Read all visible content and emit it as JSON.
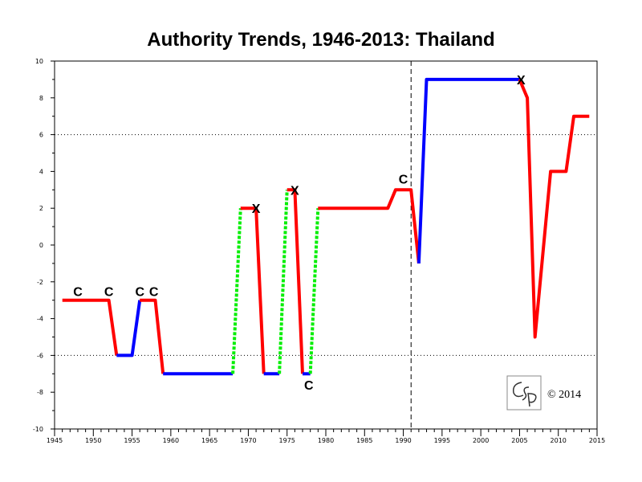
{
  "chart_data": {
    "type": "line",
    "title": "Authority Trends, 1946-2013: Thailand",
    "xlabel": "",
    "ylabel": "",
    "xlim": [
      1945,
      2015
    ],
    "ylim": [
      -10,
      10
    ],
    "x_ticks": [
      1945,
      1950,
      1955,
      1960,
      1965,
      1970,
      1975,
      1980,
      1985,
      1990,
      1995,
      2000,
      2005,
      2010,
      2015
    ],
    "y_ticks": [
      -10,
      -8,
      -6,
      -4,
      -2,
      0,
      2,
      4,
      6,
      8,
      10
    ],
    "reference_lines": {
      "horizontal_dotted": [
        6,
        -6
      ],
      "vertical_dashed": [
        1991
      ]
    },
    "series_colors": {
      "change": "#ff0000",
      "stable": "#0000ff",
      "transition": "#00ee00"
    },
    "segments": [
      {
        "style": "change",
        "points": [
          [
            1946,
            -3
          ],
          [
            1952,
            -3
          ],
          [
            1953,
            -6
          ]
        ]
      },
      {
        "style": "stable",
        "points": [
          [
            1953,
            -6
          ],
          [
            1955,
            -6
          ],
          [
            1956,
            -3
          ]
        ]
      },
      {
        "style": "change",
        "points": [
          [
            1956,
            -3
          ],
          [
            1958,
            -3
          ],
          [
            1959,
            -7
          ]
        ]
      },
      {
        "style": "stable",
        "points": [
          [
            1959,
            -7
          ],
          [
            1968,
            -7
          ]
        ]
      },
      {
        "style": "transition",
        "points": [
          [
            1968,
            -7
          ],
          [
            1969,
            2
          ]
        ]
      },
      {
        "style": "change",
        "points": [
          [
            1969,
            2
          ],
          [
            1971,
            2
          ],
          [
            1972,
            -7
          ]
        ]
      },
      {
        "style": "stable",
        "points": [
          [
            1972,
            -7
          ],
          [
            1974,
            -7
          ]
        ]
      },
      {
        "style": "transition",
        "points": [
          [
            1974,
            -7
          ],
          [
            1975,
            3
          ]
        ]
      },
      {
        "style": "change",
        "points": [
          [
            1975,
            3
          ],
          [
            1976,
            3
          ],
          [
            1977,
            -7
          ]
        ]
      },
      {
        "style": "stable",
        "points": [
          [
            1977,
            -7
          ],
          [
            1978,
            -7
          ]
        ]
      },
      {
        "style": "transition",
        "points": [
          [
            1978,
            -7
          ],
          [
            1979,
            2
          ]
        ]
      },
      {
        "style": "change",
        "points": [
          [
            1979,
            2
          ],
          [
            1988,
            2
          ],
          [
            1989,
            3
          ],
          [
            1991,
            3
          ],
          [
            1992,
            -1
          ]
        ]
      },
      {
        "style": "stable",
        "points": [
          [
            1992,
            -1
          ],
          [
            1993,
            9
          ],
          [
            2005,
            9
          ]
        ]
      },
      {
        "style": "change",
        "points": [
          [
            2005,
            9
          ],
          [
            2006,
            8
          ],
          [
            2007,
            -5
          ],
          [
            2009,
            4
          ],
          [
            2011,
            4
          ],
          [
            2012,
            7
          ],
          [
            2014,
            7
          ]
        ]
      }
    ],
    "annotations": [
      {
        "label": "C",
        "x": 1948,
        "y": -2.5
      },
      {
        "label": "C",
        "x": 1952,
        "y": -2.5
      },
      {
        "label": "C",
        "x": 1956,
        "y": -2.5
      },
      {
        "label": "C",
        "x": 1957.8,
        "y": -2.5
      },
      {
        "label": "X",
        "x": 1971,
        "y": 2
      },
      {
        "label": "X",
        "x": 1976,
        "y": 3
      },
      {
        "label": "C",
        "x": 1977.8,
        "y": -7.6
      },
      {
        "label": "C",
        "x": 1990,
        "y": 3.6
      },
      {
        "label": "X",
        "x": 2005.2,
        "y": 9
      }
    ],
    "copyright": "© 2014",
    "logo_text": "CSP"
  }
}
